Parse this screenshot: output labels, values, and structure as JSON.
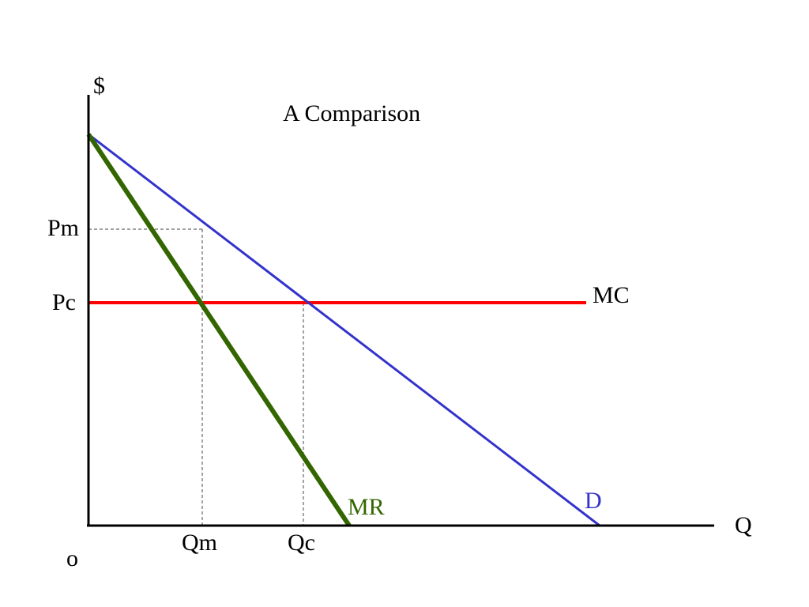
{
  "title": "A Comparison",
  "axes": {
    "y_label": "$",
    "x_label": "Q",
    "origin_label": "o"
  },
  "price_labels": {
    "monopoly": "Pm",
    "competitive": "Pc"
  },
  "quantity_labels": {
    "monopoly": "Qm",
    "competitive": "Qc"
  },
  "curves": {
    "mc": {
      "label": "MC",
      "color": "#ff0000"
    },
    "demand": {
      "label": "D",
      "color": "#3333cc"
    },
    "mr": {
      "label": "MR",
      "color": "#336600"
    }
  },
  "colors": {
    "axis": "#000000",
    "guides": "#666666",
    "text": "#000000"
  }
}
